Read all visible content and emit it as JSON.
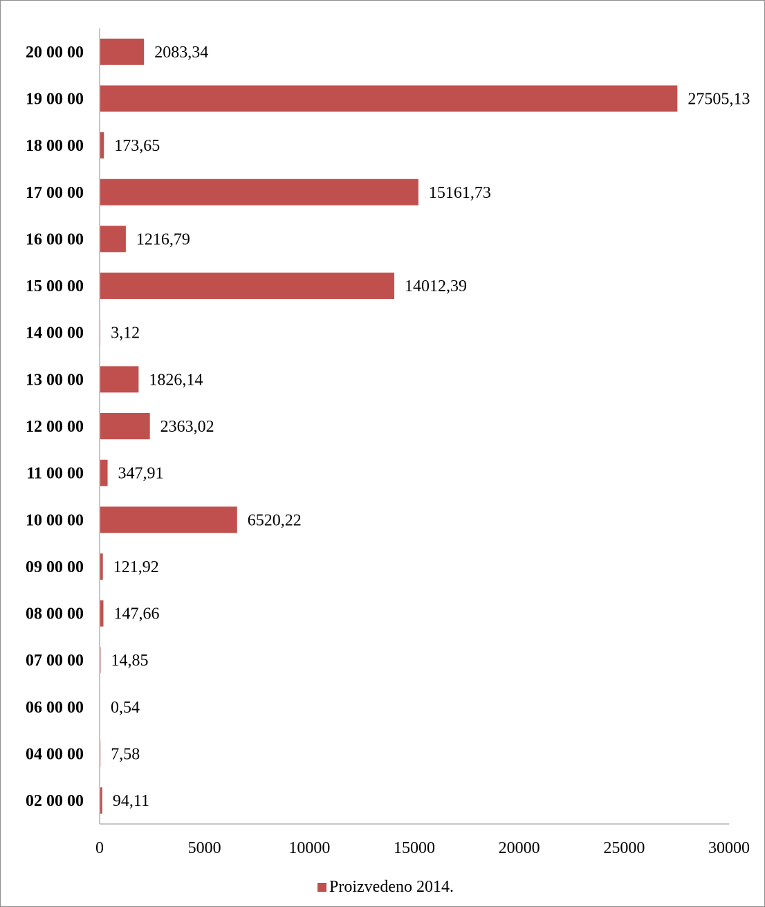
{
  "chart_data": {
    "type": "bar",
    "orientation": "horizontal",
    "categories": [
      "02 00 00",
      "04 00 00",
      "06 00 00",
      "07 00 00",
      "08 00 00",
      "09 00 00",
      "10 00 00",
      "11 00 00",
      "12 00 00",
      "13 00 00",
      "14 00 00",
      "15 00 00",
      "16 00 00",
      "17 00 00",
      "18 00 00",
      "19 00 00",
      "20 00 00"
    ],
    "series": [
      {
        "name": "Proizvedeno 2014.",
        "color": "#c0504d",
        "values": [
          94.11,
          7.58,
          0.54,
          14.85,
          147.66,
          121.92,
          6520.22,
          347.91,
          2363.02,
          1826.14,
          3.12,
          14012.39,
          1216.79,
          15161.73,
          173.65,
          27505.13,
          2083.34
        ],
        "value_labels": [
          "94,11",
          "7,58",
          "0,54",
          "14,85",
          "147,66",
          "121,92",
          "6520,22",
          "347,91",
          "2363,02",
          "1826,14",
          "3,12",
          "14012,39",
          "1216,79",
          "15161,73",
          "173,65",
          "27505,13",
          "2083,34"
        ]
      }
    ],
    "xlim": [
      0,
      30000
    ],
    "x_ticks": [
      "0",
      "5000",
      "10000",
      "15000",
      "20000",
      "25000",
      "30000"
    ],
    "grid": false,
    "legend_position": "bottom"
  }
}
